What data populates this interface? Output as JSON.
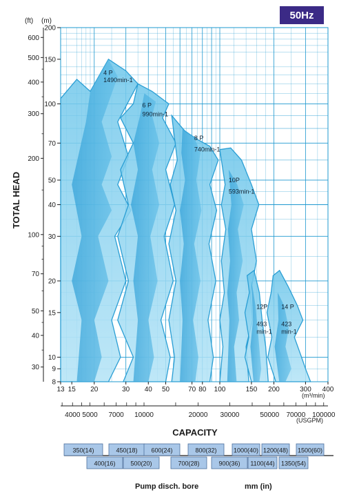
{
  "badge": "50Hz",
  "chart_data": {
    "type": "area",
    "title": "",
    "ylabel": "TOTAL HEAD",
    "xlabel": "CAPACITY",
    "y_unit_ft": "(ft)",
    "y_unit_m": "(m)",
    "x_unit_m3": "(m³/min)",
    "x_unit_usgpm": "(USGPM)",
    "x_scale": "log",
    "y_scale": "log",
    "xlim_m3min": [
      13,
      400
    ],
    "ylim_m": [
      8,
      200
    ],
    "grid": true,
    "y_ticks_m": [
      200,
      150,
      100,
      70,
      50,
      40,
      30,
      20,
      15,
      10,
      9,
      8
    ],
    "y_ticks_ft": [
      600,
      500,
      400,
      300,
      200,
      100,
      70,
      50,
      40,
      30
    ],
    "x_ticks_m3min": [
      13,
      15,
      20,
      30,
      40,
      50,
      70,
      80,
      100,
      150,
      200,
      300,
      400
    ],
    "x_ticks_usgpm": [
      4000,
      5000,
      7000,
      10000,
      20000,
      30000,
      50000,
      70000,
      100000
    ],
    "series": [
      {
        "name": "4 P",
        "speed": "1490min-1",
        "x_range_m3min": [
          13,
          36
        ],
        "max_head_m": 150
      },
      {
        "name": "6 P",
        "speed": "990min-1",
        "x_range_m3min": [
          20,
          57
        ],
        "max_head_m": 125
      },
      {
        "name": "8 P",
        "speed": "740min-1",
        "x_range_m3min": [
          54,
          98
        ],
        "max_head_m": 85
      },
      {
        "name": "10P",
        "speed": "593min-1",
        "x_range_m3min": [
          100,
          165
        ],
        "max_head_m": 65
      },
      {
        "name": "12P",
        "speed": "493\nmin-1",
        "x_range_m3min": [
          138,
          210
        ],
        "max_head_m": 22
      },
      {
        "name": "14 P",
        "speed": "423\nmin-1",
        "x_range_m3min": [
          178,
          320
        ],
        "max_head_m": 22
      }
    ]
  },
  "bores": {
    "row1": [
      "350(14)",
      "450(18)",
      "600(24)",
      "800(32)",
      "1000(40)",
      "1200(48)",
      "1500(60)"
    ],
    "row2": [
      "400(16)",
      "500(20)",
      "700(28)",
      "900(36)",
      "1100(44)",
      "1350(54)"
    ],
    "caption": "Pump disch. bore",
    "unit": "mm (in)"
  }
}
